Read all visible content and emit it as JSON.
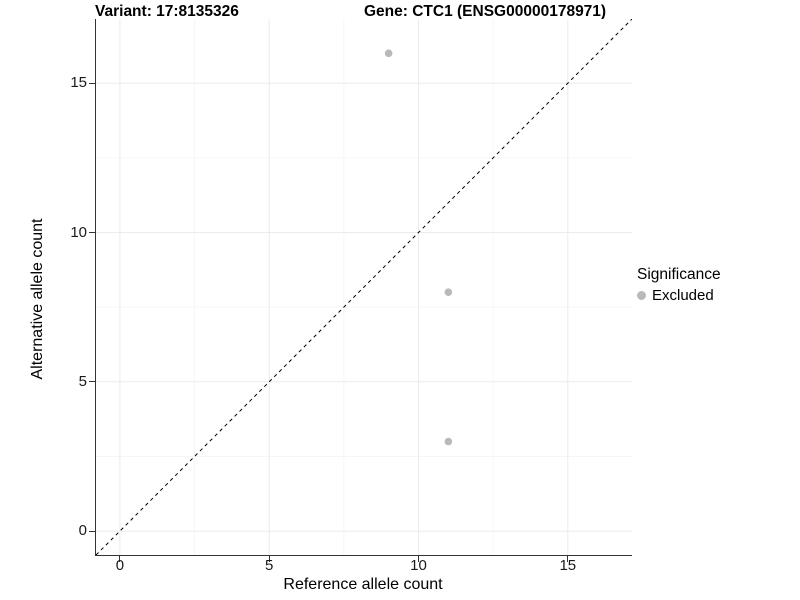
{
  "titles": {
    "variant": "Variant: 17:8135326",
    "gene": "Gene: CTC1 (ENSG00000178971)"
  },
  "chart_data": {
    "type": "scatter",
    "title": "Variant: 17:8135326   Gene: CTC1 (ENSG00000178971)",
    "xlabel": "Reference allele count",
    "ylabel": "Alternative allele count",
    "xlim": [
      -0.8,
      17.15
    ],
    "ylim": [
      -0.8,
      17.15
    ],
    "x_ticks": [
      0,
      5,
      10,
      15
    ],
    "y_ticks": [
      0,
      5,
      10,
      15
    ],
    "x_minor_ticks": [
      2.5,
      7.5,
      12.5
    ],
    "y_minor_ticks": [
      2.5,
      7.5,
      12.5
    ],
    "grid": "major and minor, very light gray, white background",
    "legend_title": "Significance",
    "legend_position": "right",
    "series": [
      {
        "name": "Excluded",
        "color": "#b9b9b9",
        "point_radius_px": 3.8,
        "points": [
          [
            9,
            16
          ],
          [
            11,
            8
          ],
          [
            11,
            3
          ]
        ]
      }
    ],
    "reference_line": {
      "equation": "y = x",
      "style": "dashed",
      "color": "#000000",
      "span": [
        -0.8,
        17.15
      ]
    }
  },
  "colors": {
    "background": "#ffffff",
    "grid_major": "#ebebeb",
    "grid_minor": "#f6f6f6",
    "axis_line": "#333333",
    "text": "#000000",
    "point": "#b9b9b9"
  }
}
